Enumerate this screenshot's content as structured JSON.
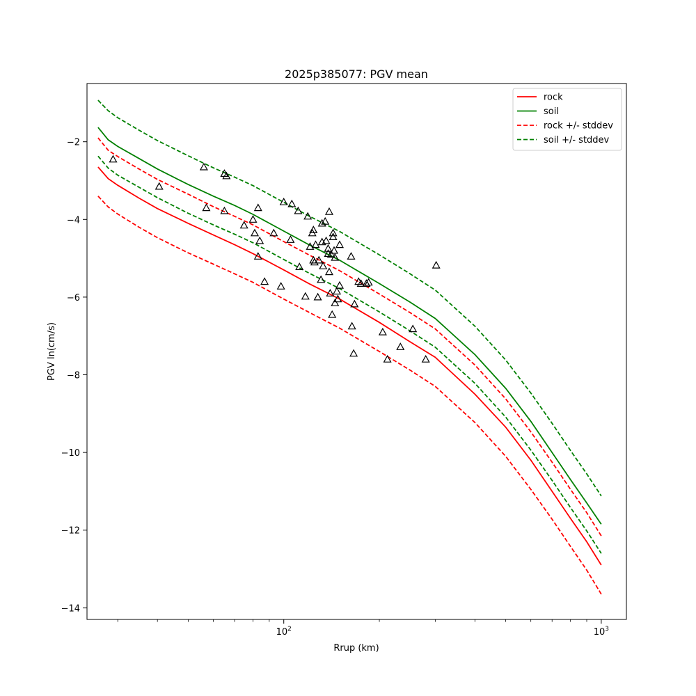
{
  "chart_data": {
    "type": "line",
    "title": "2025p385077: PGV mean",
    "xlabel": "Rrup (km)",
    "ylabel": "PGV ln(cm/s)",
    "xscale": "log",
    "xlim": [
      24,
      1200
    ],
    "ylim": [
      -14.3,
      -0.5
    ],
    "xticks_major": [
      {
        "value": 100,
        "base": "10",
        "exp": "2"
      },
      {
        "value": 1000,
        "base": "10",
        "exp": "3"
      }
    ],
    "yticks": [
      -14,
      -12,
      -10,
      -8,
      -6,
      -4,
      -2
    ],
    "grid": false,
    "legend_position": "top-right",
    "colors": {
      "rock": "#ff0000",
      "soil": "#008000",
      "points": "#000000"
    },
    "x": [
      26,
      28,
      30,
      35,
      40,
      50,
      60,
      70,
      80,
      100,
      120,
      150,
      200,
      250,
      300,
      400,
      500,
      600,
      700,
      800,
      900,
      1000
    ],
    "series": [
      {
        "name": "rock",
        "color": "#ff0000",
        "dash": false,
        "values": [
          -2.65,
          -2.95,
          -3.12,
          -3.45,
          -3.72,
          -4.1,
          -4.4,
          -4.65,
          -4.88,
          -5.3,
          -5.65,
          -6.05,
          -6.65,
          -7.15,
          -7.55,
          -8.5,
          -9.35,
          -10.2,
          -11.0,
          -11.7,
          -12.3,
          -12.9
        ]
      },
      {
        "name": "soil",
        "color": "#008000",
        "dash": false,
        "values": [
          -1.63,
          -1.95,
          -2.12,
          -2.43,
          -2.7,
          -3.1,
          -3.4,
          -3.64,
          -3.87,
          -4.3,
          -4.65,
          -5.05,
          -5.65,
          -6.13,
          -6.55,
          -7.48,
          -8.35,
          -9.2,
          -10.0,
          -10.7,
          -11.3,
          -11.85
        ]
      },
      {
        "name": "rock +/- stddev",
        "color": "#ff0000",
        "dash": true,
        "values": [
          -1.9,
          -2.22,
          -2.38,
          -2.7,
          -2.97,
          -3.35,
          -3.67,
          -3.92,
          -4.14,
          -4.57,
          -4.91,
          -5.32,
          -5.92,
          -6.4,
          -6.82,
          -7.75,
          -8.62,
          -9.47,
          -10.25,
          -10.95,
          -11.55,
          -12.15
        ]
      },
      {
        "name": "",
        "color": "#ff0000",
        "dash": true,
        "values": [
          -3.4,
          -3.68,
          -3.86,
          -4.2,
          -4.47,
          -4.86,
          -5.15,
          -5.4,
          -5.62,
          -6.05,
          -6.39,
          -6.8,
          -7.4,
          -7.88,
          -8.3,
          -9.23,
          -10.1,
          -10.95,
          -11.72,
          -12.42,
          -13.03,
          -13.65
        ]
      },
      {
        "name": "soil +/- stddev",
        "color": "#008000",
        "dash": true,
        "values": [
          -0.93,
          -1.2,
          -1.38,
          -1.7,
          -1.97,
          -2.36,
          -2.67,
          -2.91,
          -3.13,
          -3.56,
          -3.91,
          -4.31,
          -4.91,
          -5.4,
          -5.82,
          -6.75,
          -7.62,
          -8.47,
          -9.25,
          -9.95,
          -10.55,
          -11.12
        ]
      },
      {
        "name": "",
        "color": "#008000",
        "dash": true,
        "values": [
          -2.37,
          -2.68,
          -2.86,
          -3.17,
          -3.44,
          -3.84,
          -4.14,
          -4.38,
          -4.6,
          -5.03,
          -5.38,
          -5.78,
          -6.38,
          -6.87,
          -7.29,
          -8.22,
          -9.09,
          -9.94,
          -10.72,
          -11.42,
          -12.02,
          -12.6
        ]
      }
    ],
    "observations": {
      "marker": "triangle",
      "color": "#000000",
      "points": [
        [
          29,
          -2.45
        ],
        [
          40.5,
          -3.15
        ],
        [
          56,
          -2.65
        ],
        [
          57,
          -3.7
        ],
        [
          65,
          -2.82
        ],
        [
          66,
          -2.88
        ],
        [
          65,
          -3.78
        ],
        [
          75,
          -4.15
        ],
        [
          80,
          -4.0
        ],
        [
          81,
          -4.35
        ],
        [
          83,
          -3.7
        ],
        [
          84,
          -4.55
        ],
        [
          83,
          -4.95
        ],
        [
          87,
          -5.6
        ],
        [
          93,
          -4.35
        ],
        [
          98,
          -5.72
        ],
        [
          100,
          -3.55
        ],
        [
          105,
          -4.52
        ],
        [
          106,
          -3.6
        ],
        [
          111,
          -3.78
        ],
        [
          112,
          -5.22
        ],
        [
          117,
          -5.98
        ],
        [
          119,
          -3.92
        ],
        [
          121,
          -4.7
        ],
        [
          123,
          -4.35
        ],
        [
          124,
          -4.27
        ],
        [
          124,
          -5.05
        ],
        [
          125,
          -5.1
        ],
        [
          126,
          -4.65
        ],
        [
          128,
          -6.0
        ],
        [
          129,
          -5.05
        ],
        [
          131,
          -5.55
        ],
        [
          132,
          -4.58
        ],
        [
          132,
          -4.1
        ],
        [
          133,
          -5.2
        ],
        [
          135,
          -4.05
        ],
        [
          136,
          -4.55
        ],
        [
          138,
          -4.88
        ],
        [
          138,
          -4.75
        ],
        [
          139,
          -3.8
        ],
        [
          139,
          -5.35
        ],
        [
          140,
          -5.9
        ],
        [
          141,
          -4.9
        ],
        [
          142,
          -6.45
        ],
        [
          143,
          -4.45
        ],
        [
          143,
          -4.35
        ],
        [
          144,
          -4.8
        ],
        [
          145,
          -4.98
        ],
        [
          145,
          -6.15
        ],
        [
          147,
          -5.85
        ],
        [
          148,
          -6.05
        ],
        [
          150,
          -5.7
        ],
        [
          150,
          -4.65
        ],
        [
          163,
          -4.95
        ],
        [
          164,
          -6.75
        ],
        [
          166,
          -7.45
        ],
        [
          167,
          -6.18
        ],
        [
          172,
          -5.6
        ],
        [
          175,
          -5.65
        ],
        [
          182,
          -5.65
        ],
        [
          185,
          -5.62
        ],
        [
          205,
          -6.9
        ],
        [
          212,
          -7.6
        ],
        [
          233,
          -7.28
        ],
        [
          255,
          -6.82
        ],
        [
          280,
          -7.6
        ],
        [
          302,
          -5.18
        ]
      ]
    }
  }
}
